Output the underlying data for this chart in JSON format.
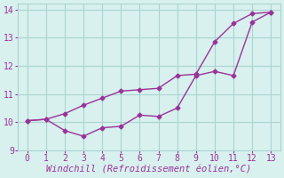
{
  "line1_x": [
    0,
    1,
    2,
    3,
    4,
    5,
    6,
    7,
    8,
    9,
    10,
    11,
    12,
    13
  ],
  "line1_y": [
    10.05,
    10.1,
    10.3,
    10.6,
    10.85,
    11.1,
    11.15,
    11.2,
    11.65,
    11.7,
    12.85,
    13.5,
    13.85,
    13.9
  ],
  "line2_x": [
    0,
    1,
    2,
    3,
    4,
    5,
    6,
    7,
    8,
    9,
    10,
    11,
    12,
    13
  ],
  "line2_y": [
    10.05,
    10.1,
    9.7,
    9.5,
    9.8,
    9.85,
    10.25,
    10.2,
    10.5,
    11.65,
    11.8,
    11.65,
    13.55,
    13.9
  ],
  "line_color": "#993399",
  "bg_color": "#d8f0ee",
  "grid_color": "#aad4d0",
  "xlabel": "Windchill (Refroidissement éolien,°C)",
  "xlim": [
    -0.5,
    13.5
  ],
  "ylim": [
    9.0,
    14.2
  ],
  "xticks": [
    0,
    1,
    2,
    3,
    4,
    5,
    6,
    7,
    8,
    9,
    10,
    11,
    12,
    13
  ],
  "yticks": [
    9,
    10,
    11,
    12,
    13,
    14
  ],
  "xlabel_fontsize": 7.5,
  "tick_fontsize": 7,
  "marker": "D",
  "marker_size": 2.5,
  "linewidth": 1.0
}
